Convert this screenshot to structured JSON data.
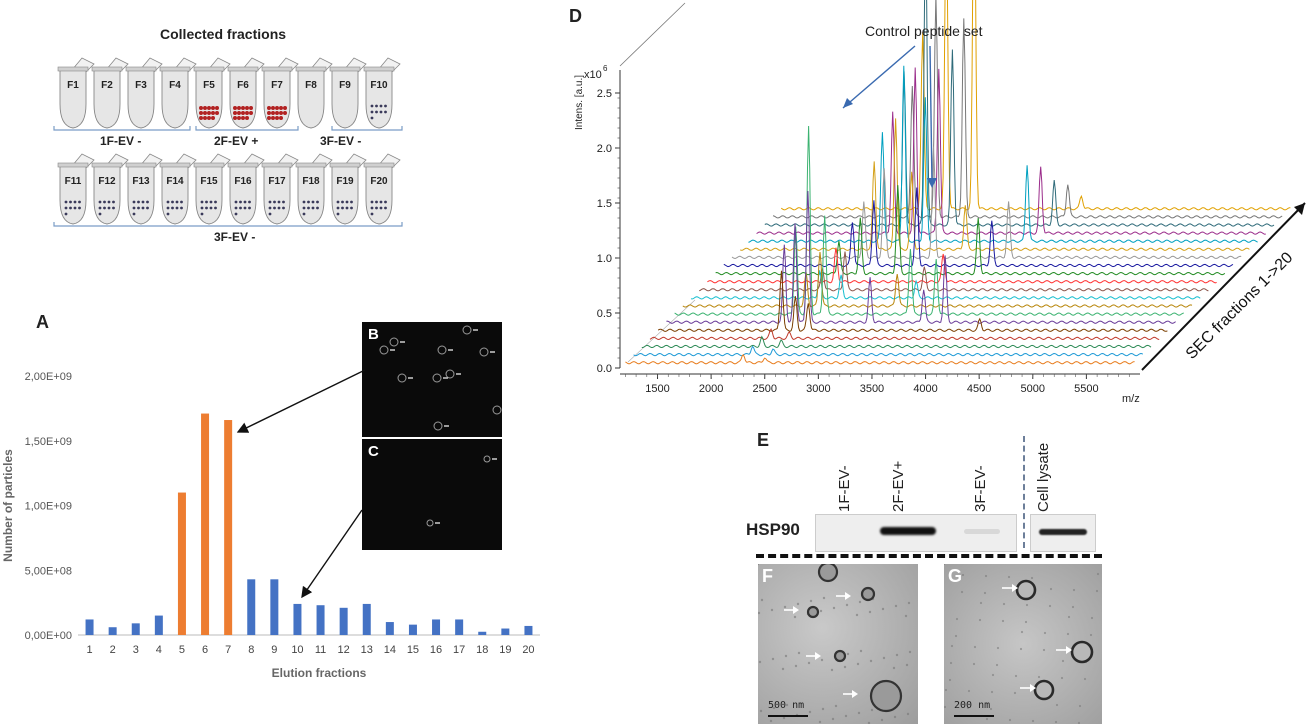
{
  "tubes": {
    "title": "Collected fractions",
    "row1": [
      "F1",
      "F2",
      "F3",
      "F4",
      "F5",
      "F6",
      "F7",
      "F8",
      "F9",
      "F10"
    ],
    "row2": [
      "F11",
      "F12",
      "F13",
      "F14",
      "F15",
      "F16",
      "F17",
      "F18",
      "F19",
      "F20"
    ],
    "group1": "1F-EV -",
    "group2": "2F-EV +",
    "group3": "3F-EV -",
    "group4": "3F-EV -"
  },
  "panels": {
    "A": "A",
    "B": "B",
    "C": "C",
    "D": "D",
    "E": "E",
    "F": "F",
    "G": "G"
  },
  "chart_data": [
    {
      "type": "bar",
      "xlabel": "Elution fractions",
      "ylabel": "Number of particles",
      "ylim": [
        0,
        2000000000
      ],
      "yticks": [
        "0,00E+00",
        "5,00E+08",
        "1,00E+09",
        "1,50E+09",
        "2,00E+09"
      ],
      "categories": [
        "1",
        "2",
        "3",
        "4",
        "5",
        "6",
        "7",
        "8",
        "9",
        "10",
        "11",
        "12",
        "13",
        "14",
        "15",
        "16",
        "17",
        "18",
        "19",
        "20"
      ],
      "values": [
        120000000,
        60000000,
        90000000,
        150000000,
        1100000000,
        1710000000,
        1660000000,
        430000000,
        430000000,
        240000000,
        230000000,
        210000000,
        240000000,
        100000000,
        80000000,
        120000000,
        120000000,
        25000000,
        50000000,
        70000000
      ],
      "highlight": [
        5,
        6,
        7
      ],
      "colors": {
        "default": "#4472c4",
        "highlight": "#ed7d31"
      }
    },
    {
      "type": "line",
      "ylabel": "Intens. [a.u.]",
      "y_multiplier": "x10",
      "y_multiplier_exp": "6",
      "xlabel": "m/z",
      "x_ticks": [
        "1500",
        "2000",
        "2500",
        "3000",
        "3500",
        "4000",
        "4500",
        "5000",
        "5500"
      ],
      "y_ticks": [
        "0.0",
        "0.5",
        "1.0",
        "1.5",
        "2.0",
        "2.5"
      ],
      "depth_label": "SEC fractions 1->20",
      "annotation": "Control peptide set",
      "colors": [
        "#e87d1e",
        "#1e9ad6",
        "#2e8b57",
        "#c0392b",
        "#7b3f00",
        "#6a3d9a",
        "#3cb371",
        "#b8860b",
        "#17becf",
        "#8c564b",
        "#ff3333",
        "#228b22",
        "#1a1aa0",
        "#999999",
        "#d4a017",
        "#00a0c0",
        "#9b2d8b",
        "#2f6b7a",
        "#777777",
        "#e0a000"
      ]
    }
  ],
  "image_b_label": "B",
  "image_c_label": "C",
  "western": {
    "lanes": [
      "1F-EV-",
      "2F-EV+",
      "3F-EV-",
      "Cell lysate"
    ],
    "protein": "HSP90"
  },
  "tem": {
    "f_scale": "500 nm",
    "g_scale": "200 nm"
  }
}
